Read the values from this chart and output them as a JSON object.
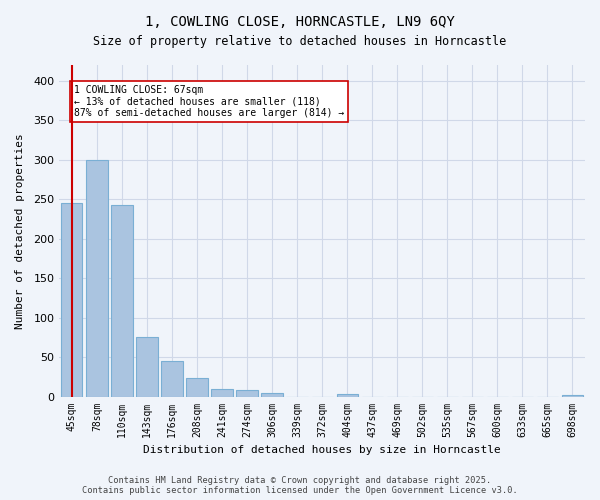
{
  "title_line1": "1, COWLING CLOSE, HORNCASTLE, LN9 6QY",
  "title_line2": "Size of property relative to detached houses in Horncastle",
  "xlabel": "Distribution of detached houses by size in Horncastle",
  "ylabel": "Number of detached properties",
  "categories": [
    "45sqm",
    "78sqm",
    "110sqm",
    "143sqm",
    "176sqm",
    "208sqm",
    "241sqm",
    "274sqm",
    "306sqm",
    "339sqm",
    "372sqm",
    "404sqm",
    "437sqm",
    "469sqm",
    "502sqm",
    "535sqm",
    "567sqm",
    "600sqm",
    "633sqm",
    "665sqm",
    "698sqm"
  ],
  "values": [
    245,
    300,
    243,
    76,
    45,
    23,
    9,
    8,
    5,
    0,
    0,
    3,
    0,
    0,
    0,
    0,
    0,
    0,
    0,
    0,
    2
  ],
  "bar_color": "#aac4e0",
  "bar_edge_color": "#7aafd4",
  "property_size": 67,
  "property_bar_index": 0,
  "vline_color": "#cc0000",
  "annotation_text": "1 COWLING CLOSE: 67sqm\n← 13% of detached houses are smaller (118)\n87% of semi-detached houses are larger (814) →",
  "annotation_box_color": "#ffffff",
  "annotation_box_edge_color": "#cc0000",
  "grid_color": "#d0d8e8",
  "background_color": "#f0f4fa",
  "footer_text": "Contains HM Land Registry data © Crown copyright and database right 2025.\nContains public sector information licensed under the Open Government Licence v3.0.",
  "ylim": [
    0,
    420
  ],
  "yticks": [
    0,
    50,
    100,
    150,
    200,
    250,
    300,
    350,
    400
  ]
}
